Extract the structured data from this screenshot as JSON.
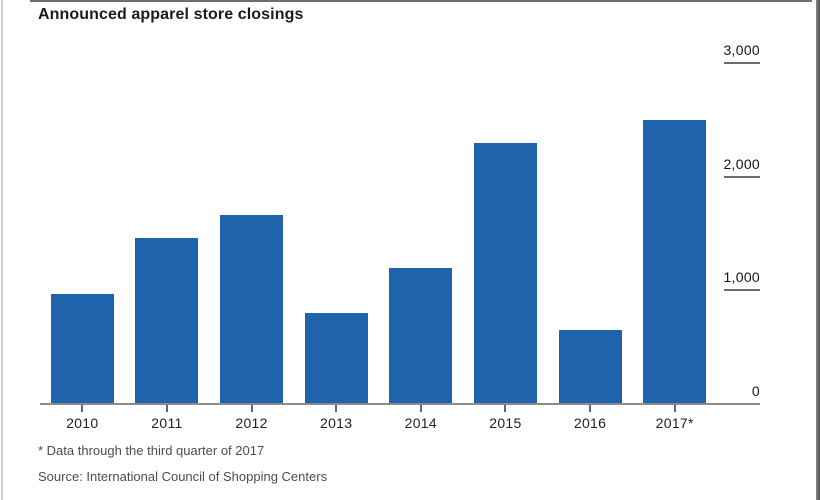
{
  "page": {
    "title": "Announced apparel store closings"
  },
  "chart_data": {
    "type": "bar",
    "title": "Announced apparel store closings",
    "categories": [
      "2010",
      "2011",
      "2012",
      "2013",
      "2014",
      "2015",
      "2016",
      "2017*"
    ],
    "values": [
      960,
      1450,
      1650,
      790,
      1190,
      2290,
      640,
      2490
    ],
    "xlabel": "",
    "ylabel": "",
    "ylim": [
      0,
      3000
    ],
    "yticks": [
      0,
      1000,
      2000,
      3000
    ],
    "ytick_labels": [
      "0",
      "1,000",
      "2,000",
      "3,000"
    ],
    "ytick_side": "right",
    "grid": false,
    "legend": "none",
    "bar_color": "#2063ad",
    "axis_line_color": "#8c8c8c",
    "footnote": "* Data through the third quarter of 2017",
    "source": "Source: International Council of Shopping Centers"
  }
}
